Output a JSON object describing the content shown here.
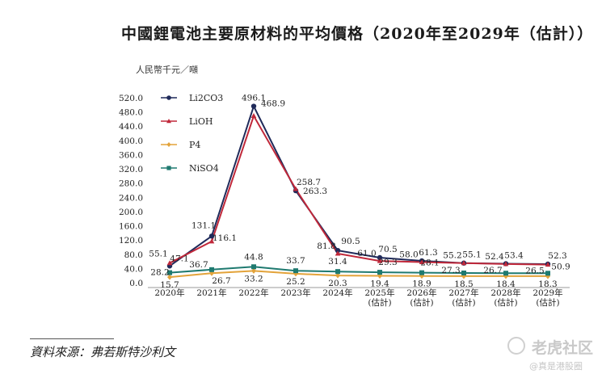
{
  "chart_data": {
    "type": "line",
    "title": "中國鋰電池主要原材料的平均價格（2020年至2029年（估計））",
    "ylabel": "人民幣千元／噸",
    "xlabel": "",
    "ylim": [
      0,
      520
    ],
    "yticks": [
      "0.0",
      "40.0",
      "80.0",
      "120.0",
      "160.0",
      "200.0",
      "240.0",
      "280.0",
      "320.0",
      "360.0",
      "400.0",
      "440.0",
      "480.0",
      "520.0"
    ],
    "categories": [
      [
        "2020年"
      ],
      [
        "2021年"
      ],
      [
        "2022年"
      ],
      [
        "2023年"
      ],
      [
        "2024年"
      ],
      [
        "2025年",
        "(估計)"
      ],
      [
        "2026年",
        "(估計)"
      ],
      [
        "2027年",
        "(估計)"
      ],
      [
        "2028年",
        "(估計)"
      ],
      [
        "2029年",
        "(估計)"
      ]
    ],
    "legend_position": "top-left",
    "grid": false,
    "series": [
      {
        "name": "Li2CO3",
        "color": "#1f2a5a",
        "marker": "circle",
        "values": [
          47.1,
          131.1,
          496.1,
          258.7,
          90.5,
          70.5,
          61.3,
          55.1,
          53.4,
          52.3
        ],
        "labels": [
          "47.1",
          "131.1",
          "496.1",
          "258.7",
          "90.5",
          "70.5",
          "61.3",
          "55.1",
          "53.4",
          "52.3"
        ]
      },
      {
        "name": "LiOH",
        "color": "#c0283a",
        "marker": "triangle",
        "values": [
          55.1,
          116.1,
          468.9,
          263.3,
          81.8,
          61.0,
          58.0,
          55.2,
          52.4,
          50.9
        ],
        "labels": [
          "55.1",
          "116.1",
          "468.9",
          "263.3",
          "81.8",
          "61.0",
          "58.0",
          "55.2",
          "52.4",
          "50.9"
        ]
      },
      {
        "name": "P4",
        "color": "#e3a33a",
        "marker": "diamond",
        "values": [
          15.7,
          26.7,
          33.2,
          25.2,
          20.3,
          19.4,
          18.9,
          18.5,
          18.4,
          18.3
        ],
        "labels": [
          "15.7",
          "26.7",
          "33.2",
          "25.2",
          "20.3",
          "19.4",
          "18.9",
          "18.5",
          "18.4",
          "18.3"
        ]
      },
      {
        "name": "NiSO4",
        "color": "#1f7a70",
        "marker": "square",
        "values": [
          28.2,
          36.7,
          44.8,
          33.7,
          31.4,
          29.3,
          28.1,
          27.3,
          26.7,
          26.5
        ],
        "labels": [
          "28.2",
          "36.7",
          "44.8",
          "33.7",
          "31.4",
          "29.3",
          "28.1",
          "27.3",
          "26.7",
          "26.5"
        ]
      }
    ]
  },
  "source_note": "資料來源：弗若斯特沙利文",
  "watermark": {
    "brand": "老虎社区",
    "user": "@真是港股圈"
  }
}
